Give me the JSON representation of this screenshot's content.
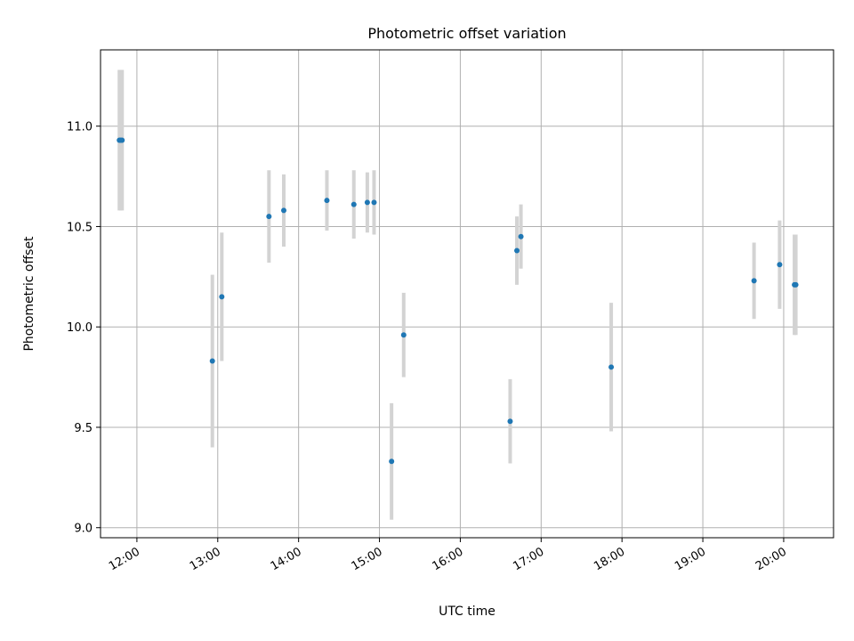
{
  "chart_data": {
    "type": "scatter",
    "title": "Photometric offset variation",
    "xlabel": "UTC time",
    "ylabel": "Photometric offset",
    "x_unit": "hours (UTC)",
    "xlim": [
      "11:33",
      "20:37"
    ],
    "ylim": [
      8.95,
      11.38
    ],
    "grid": true,
    "x_ticks": [
      {
        "t": "12:00",
        "label": "12:00"
      },
      {
        "t": "13:00",
        "label": "13:00"
      },
      {
        "t": "14:00",
        "label": "14:00"
      },
      {
        "t": "15:00",
        "label": "15:00"
      },
      {
        "t": "16:00",
        "label": "16:00"
      },
      {
        "t": "17:00",
        "label": "17:00"
      },
      {
        "t": "18:00",
        "label": "18:00"
      },
      {
        "t": "19:00",
        "label": "19:00"
      },
      {
        "t": "20:00",
        "label": "20:00"
      }
    ],
    "y_ticks": [
      {
        "v": 9.0,
        "label": "9.0"
      },
      {
        "v": 9.5,
        "label": "9.5"
      },
      {
        "v": 10.0,
        "label": "10.0"
      },
      {
        "v": 10.5,
        "label": "10.5"
      },
      {
        "v": 11.0,
        "label": "11.0"
      }
    ],
    "points": [
      {
        "t": "11:47",
        "y": 10.93,
        "err": 0.35
      },
      {
        "t": "11:48",
        "y": 10.93,
        "err": 0.35
      },
      {
        "t": "11:49",
        "y": 10.93,
        "err": 0.35
      },
      {
        "t": "12:56",
        "y": 9.83,
        "err": 0.43
      },
      {
        "t": "13:03",
        "y": 10.15,
        "err": 0.32
      },
      {
        "t": "13:38",
        "y": 10.55,
        "err": 0.23
      },
      {
        "t": "13:49",
        "y": 10.58,
        "err": 0.18
      },
      {
        "t": "14:21",
        "y": 10.63,
        "err": 0.15
      },
      {
        "t": "14:41",
        "y": 10.61,
        "err": 0.17
      },
      {
        "t": "14:51",
        "y": 10.62,
        "err": 0.15
      },
      {
        "t": "14:56",
        "y": 10.62,
        "err": 0.16
      },
      {
        "t": "15:09",
        "y": 9.33,
        "err": 0.29
      },
      {
        "t": "15:18",
        "y": 9.96,
        "err": 0.21
      },
      {
        "t": "16:37",
        "y": 9.53,
        "err": 0.21
      },
      {
        "t": "16:42",
        "y": 10.38,
        "err": 0.17
      },
      {
        "t": "16:45",
        "y": 10.45,
        "err": 0.16
      },
      {
        "t": "17:52",
        "y": 9.8,
        "err": 0.32
      },
      {
        "t": "19:38",
        "y": 10.23,
        "err": 0.19
      },
      {
        "t": "19:57",
        "y": 10.31,
        "err": 0.22
      },
      {
        "t": "20:08",
        "y": 10.21,
        "err": 0.25
      },
      {
        "t": "20:09",
        "y": 10.21,
        "err": 0.25
      }
    ],
    "colors": {
      "marker": "#1f77b4",
      "errorbar": "#d3d3d3",
      "grid": "#b0b0b0",
      "axes": "#000000"
    }
  }
}
